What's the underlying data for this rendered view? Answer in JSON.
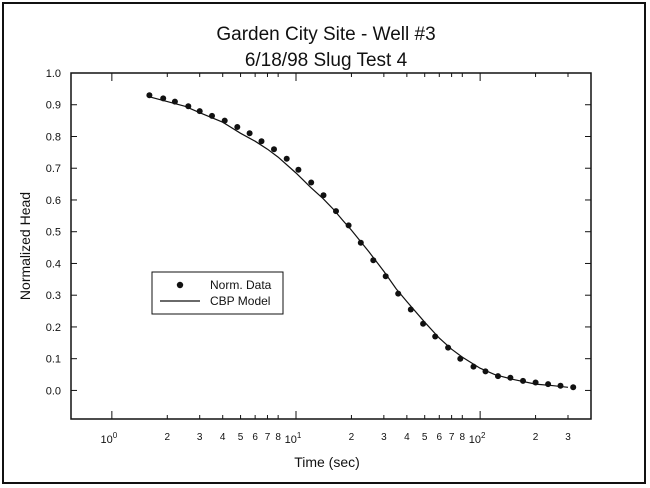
{
  "chart_data": {
    "type": "scatter",
    "title": "Garden City Site - Well #3",
    "subtitle": "6/18/98 Slug Test 4",
    "xlabel": "Time (sec)",
    "ylabel": "Normalized Head",
    "xscale": "log",
    "xlim": [
      0.6,
      400
    ],
    "ylim": [
      -0.09,
      1.0
    ],
    "grid": false,
    "legend_position": "center-left",
    "y_ticks": [
      0.0,
      0.1,
      0.2,
      0.3,
      0.4,
      0.5,
      0.6,
      0.7,
      0.8,
      0.9,
      1.0
    ],
    "y_tick_labels": [
      "0.0",
      "0.1",
      "0.2",
      "0.3",
      "0.4",
      "0.5",
      "0.6",
      "0.7",
      "0.8",
      "0.9",
      "1.0"
    ],
    "x_major_ticks": [
      {
        "value": 1,
        "base": "10",
        "exp": "0"
      },
      {
        "value": 10,
        "base": "10",
        "exp": "1"
      },
      {
        "value": 100,
        "base": "10",
        "exp": "2"
      }
    ],
    "x_minor_ticks": [
      {
        "value": 2,
        "label": "2"
      },
      {
        "value": 3,
        "label": "3"
      },
      {
        "value": 4,
        "label": "4"
      },
      {
        "value": 5,
        "label": "5"
      },
      {
        "value": 6,
        "label": "6"
      },
      {
        "value": 7,
        "label": "7"
      },
      {
        "value": 8,
        "label": "8"
      },
      {
        "value": 20,
        "label": "2"
      },
      {
        "value": 30,
        "label": "3"
      },
      {
        "value": 40,
        "label": "4"
      },
      {
        "value": 50,
        "label": "5"
      },
      {
        "value": 60,
        "label": "6"
      },
      {
        "value": 70,
        "label": "7"
      },
      {
        "value": 80,
        "label": "8"
      },
      {
        "value": 200,
        "label": "2"
      },
      {
        "value": 300,
        "label": "3"
      },
      {
        "value": 400,
        "label": ""
      }
    ],
    "series": [
      {
        "name": "Norm. Data",
        "kind": "markers",
        "x": [
          1.6,
          1.9,
          2.2,
          2.6,
          3.0,
          3.5,
          4.1,
          4.8,
          5.6,
          6.5,
          7.6,
          8.9,
          10.3,
          12.1,
          14.1,
          16.5,
          19.3,
          22.5,
          26.3,
          30.7,
          35.9,
          42.0,
          49.0,
          57.0,
          67.0,
          78.0,
          92.0,
          107,
          125,
          146,
          171,
          200,
          234,
          273,
          320
        ],
        "y": [
          0.93,
          0.92,
          0.91,
          0.895,
          0.88,
          0.865,
          0.85,
          0.83,
          0.81,
          0.785,
          0.76,
          0.73,
          0.695,
          0.655,
          0.615,
          0.565,
          0.52,
          0.465,
          0.41,
          0.36,
          0.305,
          0.255,
          0.21,
          0.17,
          0.135,
          0.1,
          0.075,
          0.06,
          0.045,
          0.04,
          0.03,
          0.025,
          0.02,
          0.015,
          0.01
        ]
      },
      {
        "name": "CBP Model",
        "kind": "line",
        "x": [
          1.6,
          2.0,
          2.5,
          3.0,
          4.0,
          5.0,
          6.0,
          7.0,
          8.0,
          10,
          12,
          14,
          16,
          18,
          20,
          25,
          30,
          35,
          40,
          50,
          60,
          70,
          80,
          100,
          120,
          150,
          200,
          250,
          300
        ],
        "y": [
          0.925,
          0.91,
          0.895,
          0.875,
          0.845,
          0.81,
          0.785,
          0.76,
          0.735,
          0.685,
          0.64,
          0.605,
          0.57,
          0.535,
          0.505,
          0.435,
          0.375,
          0.32,
          0.28,
          0.215,
          0.165,
          0.13,
          0.105,
          0.07,
          0.05,
          0.035,
          0.02,
          0.015,
          0.01
        ]
      }
    ]
  }
}
